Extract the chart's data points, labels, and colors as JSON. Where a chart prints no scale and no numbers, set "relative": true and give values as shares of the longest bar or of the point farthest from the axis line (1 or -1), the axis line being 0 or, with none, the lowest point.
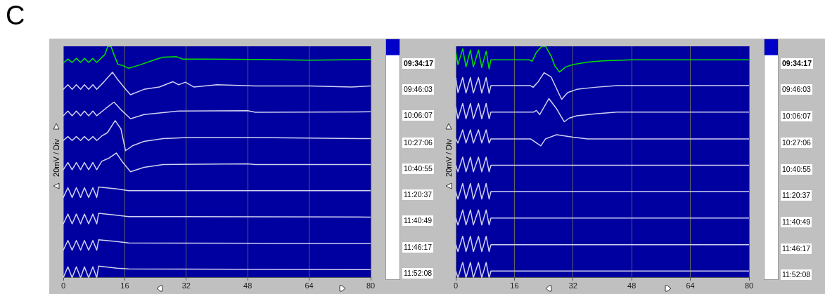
{
  "chart_data": [
    {
      "type": "line",
      "title": "C",
      "ylabel": "20mV / Div",
      "relative": true,
      "xlim": [
        0,
        80
      ],
      "xticks": [
        0,
        16,
        32,
        48,
        64,
        80
      ],
      "grid": "x",
      "legend": false,
      "series": [
        {
          "name": "09:34:17",
          "color": "#00e000",
          "x": [
            0,
            1.2,
            2.3,
            3.4,
            4.5,
            5.5,
            6.6,
            7.7,
            8.7,
            9.8,
            10.8,
            11.6,
            12.4,
            13.2,
            14.2,
            15.5,
            17,
            20,
            24,
            26,
            29.5,
            31,
            38,
            50,
            64,
            80
          ],
          "values": [
            0.928,
            0.945,
            0.93,
            0.948,
            0.93,
            0.948,
            0.93,
            0.948,
            0.93,
            0.948,
            0.964,
            1.0,
            1.0,
            0.964,
            0.922,
            0.917,
            0.905,
            0.92,
            0.943,
            0.953,
            0.955,
            0.945,
            0.945,
            0.943,
            0.94,
            0.943
          ]
        },
        {
          "name": "09:46:03",
          "color": "#d0d0f0",
          "x": [
            0,
            1.2,
            2.3,
            3.4,
            4.5,
            5.5,
            6.6,
            7.7,
            8.7,
            10.5,
            12.8,
            14,
            16,
            17.5,
            21,
            25,
            28.5,
            30,
            31.8,
            34,
            40,
            50,
            64,
            75,
            80
          ],
          "values": [
            0.814,
            0.834,
            0.814,
            0.834,
            0.814,
            0.834,
            0.814,
            0.834,
            0.814,
            0.845,
            0.888,
            0.86,
            0.819,
            0.791,
            0.814,
            0.824,
            0.847,
            0.834,
            0.845,
            0.824,
            0.834,
            0.829,
            0.829,
            0.824,
            0.829
          ]
        },
        {
          "name": "10:06:07",
          "color": "#d0d0f0",
          "x": [
            0,
            1.2,
            2.3,
            3.4,
            4.5,
            5.5,
            6.6,
            7.7,
            8.7,
            11,
            13.2,
            15,
            17.5,
            21,
            30,
            48,
            50,
            80
          ],
          "values": [
            0.7,
            0.72,
            0.7,
            0.72,
            0.7,
            0.72,
            0.7,
            0.72,
            0.7,
            0.731,
            0.759,
            0.726,
            0.687,
            0.705,
            0.72,
            0.722,
            0.715,
            0.717
          ]
        },
        {
          "name": "10:27:06",
          "color": "#d0d0f0",
          "x": [
            0,
            1.2,
            2.3,
            3.4,
            4.5,
            5.5,
            6.6,
            7.7,
            8.7,
            10,
            11.5,
            13.5,
            15,
            16.2,
            18,
            21,
            26,
            32,
            50,
            80
          ],
          "values": [
            0.593,
            0.61,
            0.593,
            0.61,
            0.593,
            0.61,
            0.593,
            0.61,
            0.593,
            0.612,
            0.627,
            0.679,
            0.643,
            0.549,
            0.57,
            0.589,
            0.601,
            0.606,
            0.606,
            0.601
          ]
        },
        {
          "name": "10:40:55",
          "color": "#d0d0f0",
          "x": [
            0,
            1.2,
            2.3,
            3.4,
            4.5,
            5.5,
            6.6,
            7.7,
            8.7,
            10,
            12,
            13.8,
            15.5,
            17.5,
            21,
            26,
            48,
            50,
            80
          ],
          "values": [
            0.467,
            0.498,
            0.467,
            0.498,
            0.467,
            0.498,
            0.467,
            0.498,
            0.467,
            0.503,
            0.518,
            0.539,
            0.498,
            0.458,
            0.477,
            0.489,
            0.492,
            0.489,
            0.489
          ]
        },
        {
          "name": "11:20:37",
          "color": "#d0d0f0",
          "x": [
            0,
            1.2,
            2.3,
            3.4,
            4.5,
            5.5,
            6.6,
            7.7,
            8.7,
            9.2,
            14,
            17,
            80
          ],
          "values": [
            0.347,
            0.389,
            0.347,
            0.389,
            0.347,
            0.389,
            0.347,
            0.389,
            0.347,
            0.392,
            0.384,
            0.376,
            0.376
          ]
        },
        {
          "name": "11:40:49",
          "color": "#d0d0f0",
          "x": [
            0,
            1.2,
            2.3,
            3.4,
            4.5,
            5.5,
            6.6,
            7.7,
            8.7,
            9.2,
            14,
            17,
            80
          ],
          "values": [
            0.233,
            0.275,
            0.233,
            0.275,
            0.233,
            0.275,
            0.233,
            0.275,
            0.233,
            0.278,
            0.27,
            0.264,
            0.262
          ]
        },
        {
          "name": "11:46:17",
          "color": "#d0d0f0",
          "x": [
            0,
            1.2,
            2.3,
            3.4,
            4.5,
            5.5,
            6.6,
            7.7,
            8.7,
            9.2,
            14,
            17,
            80
          ],
          "values": [
            0.119,
            0.161,
            0.119,
            0.161,
            0.119,
            0.161,
            0.119,
            0.161,
            0.119,
            0.164,
            0.156,
            0.15,
            0.148
          ]
        },
        {
          "name": "11:52:08",
          "color": "#d0d0f0",
          "x": [
            0,
            1.2,
            2.3,
            3.4,
            4.5,
            5.5,
            6.6,
            7.7,
            8.7,
            9.2,
            14,
            17,
            80
          ],
          "values": [
            0,
            0.047,
            0,
            0.047,
            0,
            0.047,
            0,
            0.047,
            0,
            0.05,
            0.041,
            0.038,
            0.035
          ]
        }
      ]
    },
    {
      "type": "line",
      "ylabel": "20mV / Div",
      "relative": true,
      "xlim": [
        0,
        80
      ],
      "xticks": [
        0,
        16,
        32,
        48,
        64,
        80
      ],
      "grid": "x",
      "legend": false,
      "series": [
        {
          "name": "09:34:17",
          "color": "#00e000",
          "x": [
            0,
            0.6,
            1.9,
            2.8,
            4.0,
            4.8,
            6.2,
            7.1,
            8.3,
            9.1,
            9.6,
            20,
            20.8,
            22,
            23.5,
            24.5,
            26,
            27,
            28.3,
            30,
            32,
            36,
            40,
            48,
            80
          ],
          "values": [
            0.974,
            0.921,
            0.989,
            0.911,
            0.984,
            0.911,
            0.984,
            0.908,
            0.979,
            0.902,
            0.942,
            0.942,
            0.935,
            0.974,
            1.0,
            1.0,
            0.958,
            0.916,
            0.889,
            0.911,
            0.921,
            0.932,
            0.937,
            0.942,
            0.942
          ]
        },
        {
          "name": "09:46:03",
          "color": "#d0d0f0",
          "x": [
            0,
            0.6,
            1.9,
            2.8,
            4.0,
            4.8,
            6.2,
            7.1,
            8.3,
            9.1,
            9.6,
            20.4,
            21.1,
            22.5,
            24.1,
            26,
            28,
            28.9,
            30.5,
            33,
            38,
            44,
            80
          ],
          "values": [
            0.863,
            0.8,
            0.865,
            0.798,
            0.865,
            0.798,
            0.865,
            0.798,
            0.865,
            0.797,
            0.83,
            0.83,
            0.823,
            0.847,
            0.886,
            0.868,
            0.8,
            0.771,
            0.8,
            0.814,
            0.823,
            0.83,
            0.83
          ]
        },
        {
          "name": "10:06:07",
          "color": "#d0d0f0",
          "x": [
            0,
            0.6,
            1.9,
            2.8,
            4.0,
            4.8,
            6.2,
            7.1,
            8.3,
            9.1,
            9.6,
            21.3,
            22.0,
            22.9,
            25.4,
            27.5,
            29.6,
            31,
            33,
            38,
            44,
            80
          ],
          "values": [
            0.737,
            0.687,
            0.753,
            0.687,
            0.753,
            0.687,
            0.753,
            0.687,
            0.753,
            0.687,
            0.716,
            0.716,
            0.723,
            0.705,
            0.774,
            0.73,
            0.674,
            0.69,
            0.7,
            0.708,
            0.716,
            0.716
          ]
        },
        {
          "name": "10:27:06",
          "color": "#d0d0f0",
          "x": [
            0,
            0.6,
            1.9,
            2.8,
            4.0,
            4.8,
            6.2,
            7.1,
            8.3,
            9.1,
            9.6,
            20.4,
            23.2,
            24.5,
            27.5,
            32,
            36,
            80
          ],
          "values": [
            0.6,
            0.582,
            0.639,
            0.582,
            0.639,
            0.582,
            0.639,
            0.582,
            0.639,
            0.582,
            0.6,
            0.6,
            0.57,
            0.6,
            0.618,
            0.607,
            0.6,
            0.6
          ]
        },
        {
          "name": "10:40:55",
          "color": "#d0d0f0",
          "x": [
            0,
            0.6,
            1.9,
            2.8,
            4.0,
            4.8,
            6.2,
            7.1,
            8.3,
            9.1,
            9.6,
            80
          ],
          "values": [
            0.486,
            0.458,
            0.521,
            0.458,
            0.521,
            0.458,
            0.521,
            0.458,
            0.521,
            0.458,
            0.486,
            0.486
          ]
        },
        {
          "name": "11:20:37",
          "color": "#d0d0f0",
          "x": [
            0,
            0.6,
            1.9,
            2.8,
            4.0,
            4.8,
            6.2,
            7.1,
            8.3,
            9.1,
            9.6,
            80
          ],
          "values": [
            0.372,
            0.34,
            0.407,
            0.34,
            0.407,
            0.34,
            0.407,
            0.34,
            0.407,
            0.34,
            0.372,
            0.372
          ]
        },
        {
          "name": "11:40:49",
          "color": "#d0d0f0",
          "x": [
            0,
            0.6,
            1.9,
            2.8,
            4.0,
            4.8,
            6.2,
            7.1,
            8.3,
            9.1,
            9.6,
            80
          ],
          "values": [
            0.258,
            0.228,
            0.293,
            0.228,
            0.293,
            0.228,
            0.293,
            0.228,
            0.293,
            0.228,
            0.258,
            0.258
          ]
        },
        {
          "name": "11:46:17",
          "color": "#d0d0f0",
          "x": [
            0,
            0.6,
            1.9,
            2.8,
            4.0,
            4.8,
            6.2,
            7.1,
            8.3,
            9.1,
            9.6,
            80
          ],
          "values": [
            0.143,
            0.113,
            0.179,
            0.113,
            0.179,
            0.113,
            0.179,
            0.113,
            0.179,
            0.113,
            0.143,
            0.143
          ]
        },
        {
          "name": "11:52:08",
          "color": "#d0d0f0",
          "x": [
            0,
            0.6,
            1.9,
            2.8,
            4.0,
            4.8,
            6.2,
            7.1,
            8.3,
            9.1,
            9.6,
            80
          ],
          "values": [
            0.029,
            0,
            0.066,
            0,
            0.066,
            0,
            0.066,
            0,
            0.066,
            0,
            0.029,
            0.029
          ]
        }
      ]
    }
  ]
}
